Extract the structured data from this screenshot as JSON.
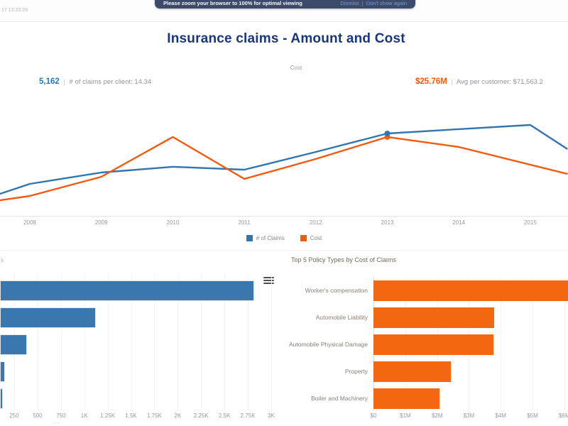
{
  "topbar": {
    "timestamp_fragment": "17 13:23:23",
    "banner": {
      "message": "Please zoom your browser to 100% for optimal viewing",
      "dismiss_label": "Dismiss",
      "separator": "|",
      "dont_show_label": "Don't show again"
    }
  },
  "header": {
    "title": "Insurance claims - Amount and Cost",
    "subtitle": "Cost"
  },
  "kpis": {
    "left": {
      "value": "5,162",
      "separator": "|",
      "label": "# of claims per client: 14.34"
    },
    "right": {
      "value": "$25.76M",
      "separator": "|",
      "label": "Avg per customer:  $71,563.2"
    }
  },
  "colors": {
    "claims_blue": "#3176b0",
    "cost_orange": "#f45a0d",
    "bar_blue": "#3b77af",
    "bar_orange": "#f2670f",
    "title_navy": "#17377f",
    "banner_bg": "#3d4a6a"
  },
  "chart_data": [
    {
      "type": "line",
      "title": "Cost",
      "x_tick_labels": [
        "2008",
        "2009",
        "2010",
        "2011",
        "2012",
        "2013",
        "2014",
        "2015"
      ],
      "x_first_year": 2008,
      "legend": [
        "# of Claims",
        "Cost"
      ],
      "legend_position": "bottom-center",
      "y_axis_visible": false,
      "note": "v is relative height (0-100) of plot area; no y-axis scale is shown; lines run past both viewport edges; both series show a selected marker dot at 2013",
      "series": [
        {
          "name": "# of Claims",
          "color": "#3176b0",
          "marker_at_x": 2013,
          "points": [
            {
              "x": 2007.58,
              "v": 20.6
            },
            {
              "x": 2008,
              "v": 29.7
            },
            {
              "x": 2009,
              "v": 40.0
            },
            {
              "x": 2010,
              "v": 45.2
            },
            {
              "x": 2011,
              "v": 42.6
            },
            {
              "x": 2012,
              "v": 58.7
            },
            {
              "x": 2013,
              "v": 75.5
            },
            {
              "x": 2014,
              "v": 79.4
            },
            {
              "x": 2015,
              "v": 83.2
            },
            {
              "x": 2015.52,
              "v": 61.3
            }
          ]
        },
        {
          "name": "Cost",
          "color": "#f45a0d",
          "marker_at_x": 2013,
          "points": [
            {
              "x": 2007.58,
              "v": 14.8
            },
            {
              "x": 2008,
              "v": 18.7
            },
            {
              "x": 2009,
              "v": 36.1
            },
            {
              "x": 2010,
              "v": 72.3
            },
            {
              "x": 2011,
              "v": 34.2
            },
            {
              "x": 2012,
              "v": 52.3
            },
            {
              "x": 2013,
              "v": 72.3
            },
            {
              "x": 2014,
              "v": 63.2
            },
            {
              "x": 2015.52,
              "v": 38.7
            }
          ]
        }
      ]
    },
    {
      "type": "bar",
      "orientation": "horizontal",
      "title_fragment": "s",
      "bar_color": "#3b77af",
      "note": "left edge of this chart (category labels and axis title) is cut off by the viewport; truncated axis-title ellipsis visible under 750",
      "ellipsis_fragment": "...",
      "values": [
        2820,
        1125,
        385,
        150,
        128
      ],
      "x_tick_labels": [
        "250",
        "500",
        "750",
        "1K",
        "1.25K",
        "1.5K",
        "1.75K",
        "2K",
        "2.25K",
        "2.5K",
        "2.75K",
        "3K"
      ],
      "x_tick_values": [
        250,
        500,
        750,
        1000,
        1250,
        1500,
        1750,
        2000,
        2250,
        2500,
        2750,
        3000
      ]
    },
    {
      "type": "bar",
      "orientation": "horizontal",
      "title": "Top 5 Policy Types by Cost of Claims",
      "bar_color": "#f2670f",
      "categories": [
        "Worker's compensation",
        "Automobile Liability",
        "Automobile Physical Damage",
        "Property",
        "Boiler and Machinery"
      ],
      "values_musd": [
        6.5,
        3.8,
        3.77,
        2.43,
        2.07
      ],
      "first_bar_clipped_at_viewport_edge": true,
      "x_tick_labels": [
        "$0",
        "$1M",
        "$2M",
        "$3M",
        "$4M",
        "$5M",
        "$6M"
      ],
      "x_tick_values": [
        0,
        1,
        2,
        3,
        4,
        5,
        6
      ]
    }
  ]
}
